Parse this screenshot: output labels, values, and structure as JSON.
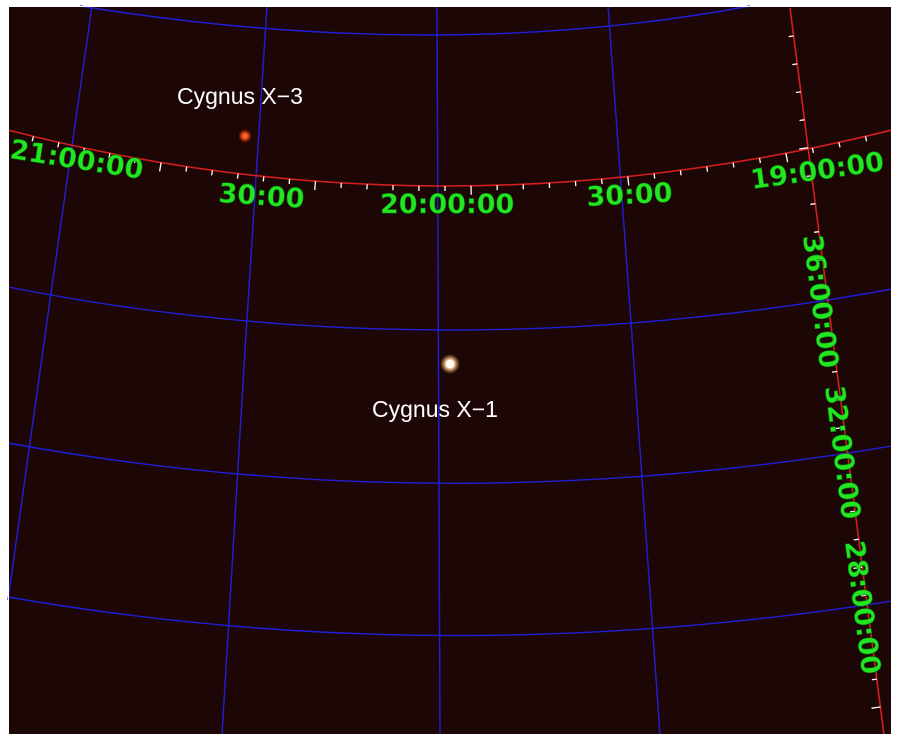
{
  "sources": [
    {
      "id": "cyg-x3",
      "label": "Cygnus X−3",
      "color": "#e84a1c",
      "glow": "#ff7a3a"
    },
    {
      "id": "cyg-x1",
      "label": "Cygnus X−1",
      "color": "#fff3dc",
      "glow": "#ffd9a0"
    }
  ],
  "ra_labels": [
    "21:00:00",
    "30:00",
    "20:00:00",
    "30:00",
    "19:00:00"
  ],
  "dec_labels": [
    "36:00:00",
    "32:00:00",
    "28:00:00"
  ],
  "colors": {
    "background": "#1c0706",
    "grid": "#1f1fd8",
    "axis": "#d21e1e",
    "ticks": "#ffffff",
    "coordinate_labels": "#22e622",
    "coordinate_label_outline": "#0a6a0a",
    "source_labels": "#ffffff",
    "border": "#ffffff"
  }
}
